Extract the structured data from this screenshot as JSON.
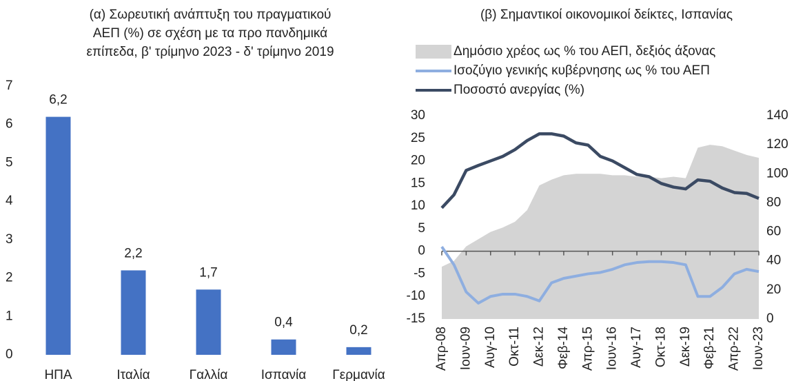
{
  "chart_data": [
    {
      "type": "bar",
      "title": [
        "(α) Σωρευτική ανάπτυξη του πραγματικού",
        "ΑΕΠ (%) σε σχέση με τα προ πανδημικά",
        "επίπεδα, β' τρίμηνο 2023 - δ' τρίμηνο 2019"
      ],
      "categories": [
        "ΗΠΑ",
        "Ιταλία",
        "Γαλλία",
        "Ισπανία",
        "Γερμανία"
      ],
      "values": [
        6.2,
        2.2,
        1.7,
        0.4,
        0.2
      ],
      "value_labels": [
        "6,2",
        "2,2",
        "1,7",
        "0,4",
        "0,2"
      ],
      "color": "#4472c4",
      "ylim": [
        0,
        7
      ],
      "yticks": [
        0,
        1,
        2,
        3,
        4,
        5,
        6,
        7
      ]
    },
    {
      "type": "line",
      "title": "(β) Σημαντικοί οικονομικοί δείκτες, Ισπανίας",
      "categories": [
        "Απρ-08",
        null,
        "Ιουν-09",
        null,
        "Αυγ-10",
        null,
        "Οκτ-11",
        null,
        "Δεκ-12",
        null,
        "Φεβ-14",
        null,
        "Απρ-15",
        null,
        "Ιουν-16",
        null,
        "Αυγ-17",
        null,
        "Οκτ-18",
        null,
        "Δεκ-19",
        null,
        "Φεβ-21",
        null,
        "Απρ-22",
        null,
        "Ιουν-23"
      ],
      "series": [
        {
          "name": "Δημόσιο χρέος ως % του ΑΕΠ, δεξιός άξονας",
          "type": "area",
          "axis": "y2",
          "color": "#d4d4d4",
          "values": [
            36,
            40,
            50,
            55,
            60,
            63,
            67,
            75,
            92,
            96,
            99,
            100,
            100,
            100,
            99,
            99,
            98,
            98,
            97,
            98,
            97,
            118,
            120,
            119,
            116,
            113,
            111
          ]
        },
        {
          "name": "Ισοζύγιο γενικής κυβέρνησης ως % του ΑΕΠ",
          "type": "line",
          "color": "#8eaee0",
          "values": [
            1,
            -3,
            -9,
            -11.5,
            -10,
            -9.5,
            -9.5,
            -10,
            -11,
            -7,
            -6,
            -5.5,
            -5,
            -4.7,
            -4,
            -3,
            -2.5,
            -2.3,
            -2.3,
            -2.5,
            -3,
            -10,
            -10,
            -8,
            -5,
            -4,
            -4.5
          ]
        },
        {
          "name": "Ποσοστό ανεργίας (%)",
          "type": "line",
          "color": "#3b4a63",
          "values": [
            9.6,
            12.5,
            17.9,
            19,
            20,
            21,
            22.5,
            24.5,
            26,
            26,
            25.5,
            24,
            23.5,
            21,
            20,
            18.5,
            17,
            16.5,
            15,
            14.2,
            13.8,
            15.8,
            15.5,
            14,
            13,
            12.8,
            11.7
          ]
        }
      ],
      "ylim": [
        -15,
        30
      ],
      "yticks": [
        -15,
        -10,
        -5,
        0,
        5,
        10,
        15,
        20,
        25,
        30
      ],
      "y2lim": [
        0,
        140
      ],
      "y2ticks": [
        0,
        20,
        40,
        60,
        80,
        100,
        120,
        140
      ]
    }
  ]
}
